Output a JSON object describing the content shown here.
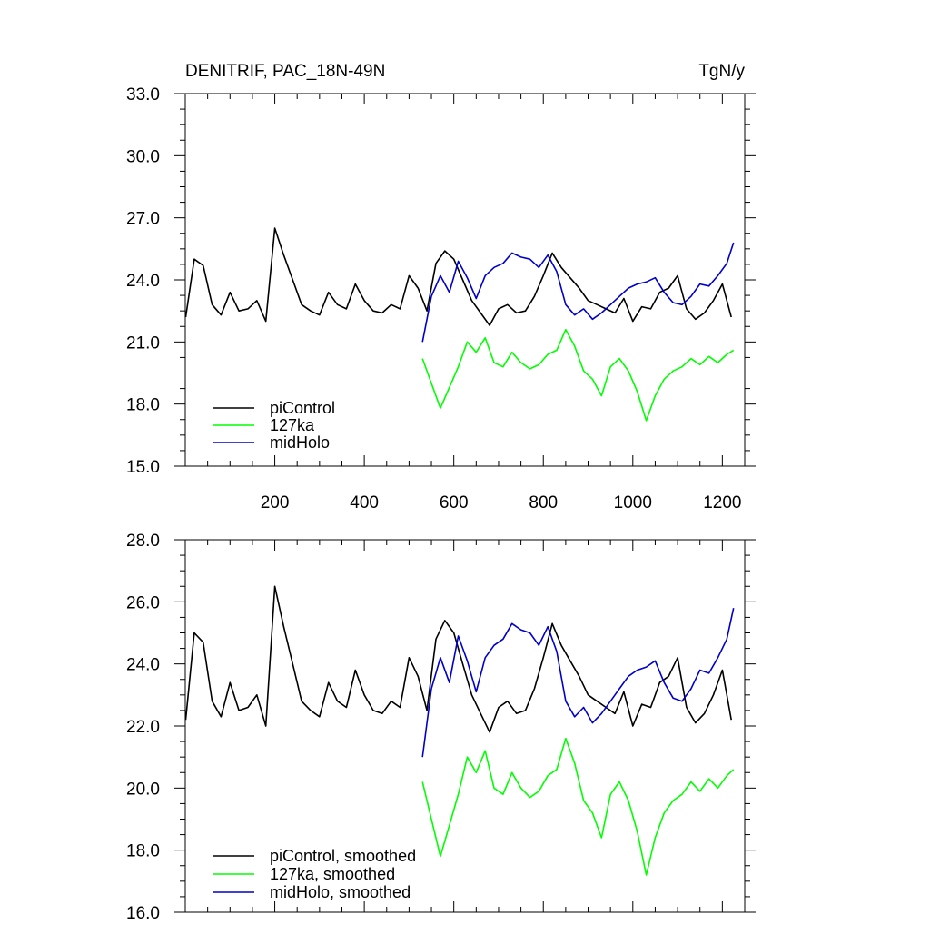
{
  "chart_data": [
    {
      "type": "line",
      "title": "DENITRIF, PAC_18N-49N",
      "units": "TgN/y",
      "xlim": [
        0,
        1250
      ],
      "ylim": [
        15.0,
        33.0
      ],
      "xticks": [
        200,
        400,
        600,
        800,
        1000,
        1200
      ],
      "xtick_labels": [
        "200",
        "400",
        "600",
        "800",
        "1000",
        "1200"
      ],
      "yticks": [
        15.0,
        18.0,
        21.0,
        24.0,
        27.0,
        30.0,
        33.0
      ],
      "ytick_labels": [
        "15.0",
        "18.0",
        "21.0",
        "24.0",
        "27.0",
        "30.0",
        "33.0"
      ],
      "grid": false,
      "legend_position": "bottom-left",
      "series": [
        {
          "name": "piControl",
          "color": "#000000",
          "x": [
            1,
            20,
            40,
            60,
            80,
            100,
            120,
            140,
            160,
            180,
            200,
            220,
            240,
            260,
            280,
            300,
            320,
            340,
            360,
            380,
            400,
            420,
            440,
            460,
            480,
            500,
            520,
            540,
            560,
            580,
            600,
            620,
            640,
            660,
            680,
            700,
            720,
            740,
            760,
            780,
            800,
            820,
            840,
            860,
            880,
            900,
            920,
            940,
            960,
            980,
            1000,
            1020,
            1040,
            1060,
            1080,
            1100,
            1120,
            1140,
            1160,
            1180,
            1200,
            1220
          ],
          "y": [
            22.2,
            25.0,
            24.7,
            22.8,
            22.3,
            23.4,
            22.5,
            22.6,
            23.0,
            22.0,
            26.5,
            25.2,
            24.0,
            22.8,
            22.5,
            22.3,
            23.4,
            22.8,
            22.6,
            23.8,
            23.0,
            22.5,
            22.4,
            22.8,
            22.6,
            24.2,
            23.6,
            22.5,
            24.8,
            25.4,
            25.0,
            24.0,
            23.0,
            22.4,
            21.8,
            22.6,
            22.8,
            22.4,
            22.5,
            23.2,
            24.2,
            25.3,
            24.6,
            24.1,
            23.6,
            23.0,
            22.8,
            22.6,
            22.4,
            23.1,
            22.0,
            22.7,
            22.6,
            23.4,
            23.6,
            24.2,
            22.6,
            22.1,
            22.4,
            23.0,
            23.8,
            22.2
          ]
        },
        {
          "name": "127ka",
          "color": "#00ff00",
          "x": [
            530,
            550,
            570,
            590,
            610,
            630,
            650,
            670,
            690,
            710,
            730,
            750,
            770,
            790,
            810,
            830,
            850,
            870,
            890,
            910,
            930,
            950,
            970,
            990,
            1010,
            1030,
            1050,
            1070,
            1090,
            1110,
            1130,
            1150,
            1170,
            1190,
            1210,
            1225
          ],
          "y": [
            20.2,
            19.0,
            17.8,
            18.8,
            19.8,
            21.0,
            20.5,
            21.2,
            20.0,
            19.8,
            20.5,
            20.0,
            19.7,
            19.9,
            20.4,
            20.6,
            21.6,
            20.8,
            19.6,
            19.2,
            18.4,
            19.8,
            20.2,
            19.6,
            18.6,
            17.2,
            18.4,
            19.2,
            19.6,
            19.8,
            20.2,
            19.9,
            20.3,
            20.0,
            20.4,
            20.6
          ]
        },
        {
          "name": "midHolo",
          "color": "#0000cc",
          "x": [
            530,
            550,
            570,
            590,
            610,
            630,
            650,
            670,
            690,
            710,
            730,
            750,
            770,
            790,
            810,
            830,
            850,
            870,
            890,
            910,
            930,
            950,
            970,
            990,
            1010,
            1030,
            1050,
            1070,
            1090,
            1110,
            1130,
            1150,
            1170,
            1190,
            1210,
            1225
          ],
          "y": [
            21.0,
            23.2,
            24.2,
            23.4,
            24.9,
            24.1,
            23.1,
            24.2,
            24.6,
            24.8,
            25.3,
            25.1,
            25.0,
            24.6,
            25.2,
            24.4,
            22.8,
            22.3,
            22.6,
            22.1,
            22.4,
            22.8,
            23.2,
            23.6,
            23.8,
            23.9,
            24.1,
            23.4,
            22.9,
            22.8,
            23.2,
            23.8,
            23.7,
            24.2,
            24.8,
            25.8
          ]
        }
      ]
    },
    {
      "type": "line",
      "title": "",
      "xlim": [
        0,
        1250
      ],
      "ylim": [
        16.0,
        28.0
      ],
      "xticks": [
        200,
        400,
        600,
        800,
        1000,
        1200
      ],
      "xtick_labels": [
        "",
        "",
        "",
        "",
        "",
        ""
      ],
      "yticks": [
        16.0,
        18.0,
        20.0,
        22.0,
        24.0,
        26.0,
        28.0
      ],
      "ytick_labels": [
        "16.0",
        "18.0",
        "20.0",
        "22.0",
        "24.0",
        "26.0",
        "28.0"
      ],
      "grid": false,
      "legend_position": "bottom-left",
      "series": [
        {
          "name": "piControl, smoothed",
          "color": "#000000",
          "x": [
            1,
            20,
            40,
            60,
            80,
            100,
            120,
            140,
            160,
            180,
            200,
            220,
            240,
            260,
            280,
            300,
            320,
            340,
            360,
            380,
            400,
            420,
            440,
            460,
            480,
            500,
            520,
            540,
            560,
            580,
            600,
            620,
            640,
            660,
            680,
            700,
            720,
            740,
            760,
            780,
            800,
            820,
            840,
            860,
            880,
            900,
            920,
            940,
            960,
            980,
            1000,
            1020,
            1040,
            1060,
            1080,
            1100,
            1120,
            1140,
            1160,
            1180,
            1200,
            1220
          ],
          "y": [
            22.2,
            25.0,
            24.7,
            22.8,
            22.3,
            23.4,
            22.5,
            22.6,
            23.0,
            22.0,
            26.5,
            25.2,
            24.0,
            22.8,
            22.5,
            22.3,
            23.4,
            22.8,
            22.6,
            23.8,
            23.0,
            22.5,
            22.4,
            22.8,
            22.6,
            24.2,
            23.6,
            22.5,
            24.8,
            25.4,
            25.0,
            24.0,
            23.0,
            22.4,
            21.8,
            22.6,
            22.8,
            22.4,
            22.5,
            23.2,
            24.2,
            25.3,
            24.6,
            24.1,
            23.6,
            23.0,
            22.8,
            22.6,
            22.4,
            23.1,
            22.0,
            22.7,
            22.6,
            23.4,
            23.6,
            24.2,
            22.6,
            22.1,
            22.4,
            23.0,
            23.8,
            22.2
          ]
        },
        {
          "name": "127ka, smoothed",
          "color": "#00ff00",
          "x": [
            530,
            550,
            570,
            590,
            610,
            630,
            650,
            670,
            690,
            710,
            730,
            750,
            770,
            790,
            810,
            830,
            850,
            870,
            890,
            910,
            930,
            950,
            970,
            990,
            1010,
            1030,
            1050,
            1070,
            1090,
            1110,
            1130,
            1150,
            1170,
            1190,
            1210,
            1225
          ],
          "y": [
            20.2,
            19.0,
            17.8,
            18.8,
            19.8,
            21.0,
            20.5,
            21.2,
            20.0,
            19.8,
            20.5,
            20.0,
            19.7,
            19.9,
            20.4,
            20.6,
            21.6,
            20.8,
            19.6,
            19.2,
            18.4,
            19.8,
            20.2,
            19.6,
            18.6,
            17.2,
            18.4,
            19.2,
            19.6,
            19.8,
            20.2,
            19.9,
            20.3,
            20.0,
            20.4,
            20.6
          ]
        },
        {
          "name": "midHolo, smoothed",
          "color": "#0000cc",
          "x": [
            530,
            550,
            570,
            590,
            610,
            630,
            650,
            670,
            690,
            710,
            730,
            750,
            770,
            790,
            810,
            830,
            850,
            870,
            890,
            910,
            930,
            950,
            970,
            990,
            1010,
            1030,
            1050,
            1070,
            1090,
            1110,
            1130,
            1150,
            1170,
            1190,
            1210,
            1225
          ],
          "y": [
            21.0,
            23.2,
            24.2,
            23.4,
            24.9,
            24.1,
            23.1,
            24.2,
            24.6,
            24.8,
            25.3,
            25.1,
            25.0,
            24.6,
            25.2,
            24.4,
            22.8,
            22.3,
            22.6,
            22.1,
            22.4,
            22.8,
            23.2,
            23.6,
            23.8,
            23.9,
            24.1,
            23.4,
            22.9,
            22.8,
            23.2,
            23.8,
            23.7,
            24.2,
            24.8,
            25.8
          ]
        }
      ]
    }
  ]
}
